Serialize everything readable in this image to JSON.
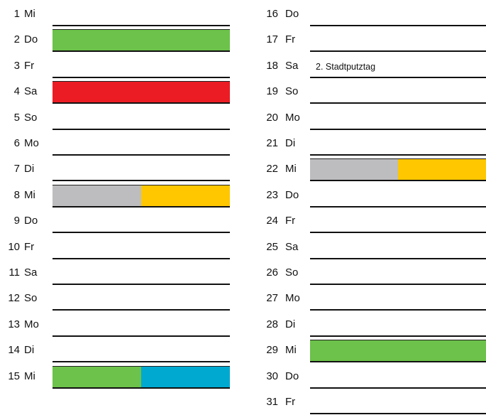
{
  "colors": {
    "green": "#6cc24a",
    "red": "#ec1c24",
    "gray": "#bdbdbf",
    "yellow": "#ffc700",
    "blue": "#00a9d0"
  },
  "left_column": [
    {
      "num": "1",
      "day": "Mi",
      "segments": []
    },
    {
      "num": "2",
      "day": "Do",
      "segments": [
        "green"
      ]
    },
    {
      "num": "3",
      "day": "Fr",
      "segments": []
    },
    {
      "num": "4",
      "day": "Sa",
      "segments": [
        "red"
      ]
    },
    {
      "num": "5",
      "day": "So",
      "segments": []
    },
    {
      "num": "6",
      "day": "Mo",
      "segments": []
    },
    {
      "num": "7",
      "day": "Di",
      "segments": []
    },
    {
      "num": "8",
      "day": "Mi",
      "segments": [
        "gray",
        "yellow"
      ]
    },
    {
      "num": "9",
      "day": "Do",
      "segments": []
    },
    {
      "num": "10",
      "day": "Fr",
      "segments": []
    },
    {
      "num": "11",
      "day": "Sa",
      "segments": []
    },
    {
      "num": "12",
      "day": "So",
      "segments": []
    },
    {
      "num": "13",
      "day": "Mo",
      "segments": []
    },
    {
      "num": "14",
      "day": "Di",
      "segments": []
    },
    {
      "num": "15",
      "day": "Mi",
      "segments": [
        "green",
        "blue"
      ]
    }
  ],
  "right_column": [
    {
      "num": "16",
      "day": "Do",
      "segments": []
    },
    {
      "num": "17",
      "day": "Fr",
      "segments": []
    },
    {
      "num": "18",
      "day": "Sa",
      "segments": [],
      "note": "2. Stadtputztag"
    },
    {
      "num": "19",
      "day": "So",
      "segments": []
    },
    {
      "num": "20",
      "day": "Mo",
      "segments": []
    },
    {
      "num": "21",
      "day": "Di",
      "segments": []
    },
    {
      "num": "22",
      "day": "Mi",
      "segments": [
        "gray",
        "yellow"
      ]
    },
    {
      "num": "23",
      "day": "Do",
      "segments": []
    },
    {
      "num": "24",
      "day": "Fr",
      "segments": []
    },
    {
      "num": "25",
      "day": "Sa",
      "segments": []
    },
    {
      "num": "26",
      "day": "So",
      "segments": []
    },
    {
      "num": "27",
      "day": "Mo",
      "segments": []
    },
    {
      "num": "28",
      "day": "Di",
      "segments": []
    },
    {
      "num": "29",
      "day": "Mi",
      "segments": [
        "green"
      ]
    },
    {
      "num": "30",
      "day": "Do",
      "segments": []
    },
    {
      "num": "31",
      "day": "Fr",
      "segments": []
    }
  ]
}
